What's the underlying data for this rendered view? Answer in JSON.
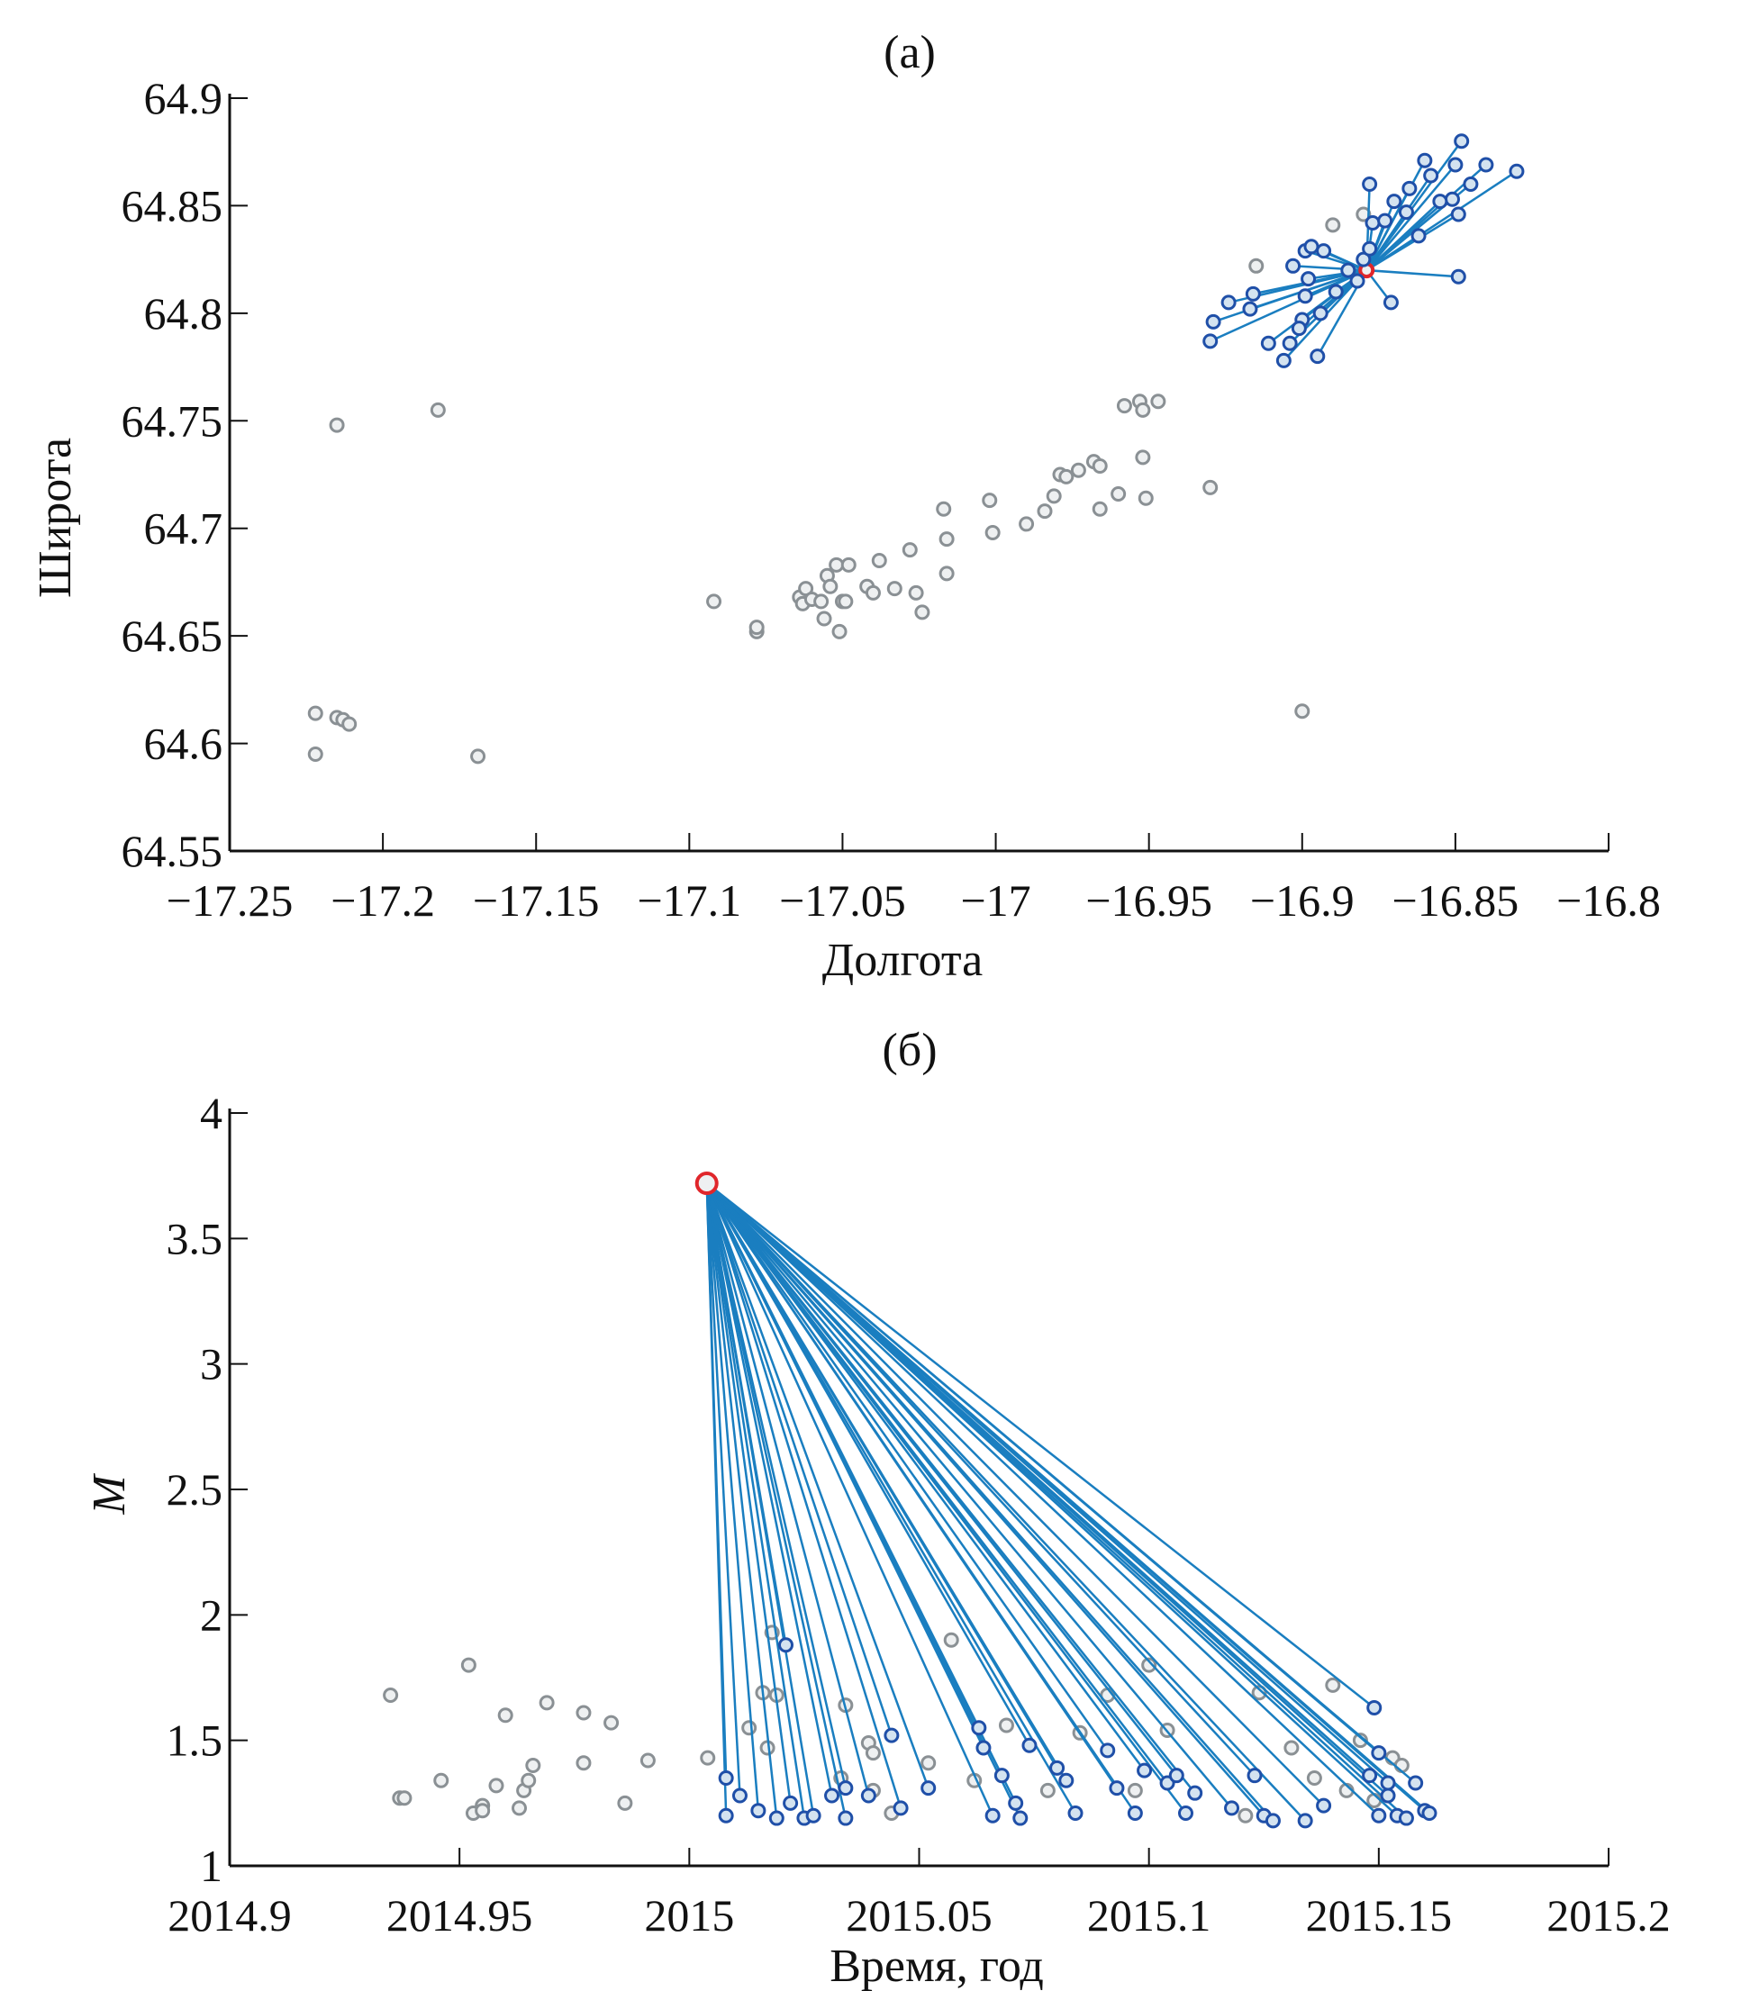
{
  "chart_data": [
    {
      "type": "scatter",
      "title": "(а)",
      "xlabel": "Долгота",
      "ylabel": "Широта",
      "xlim": [
        -17.25,
        -16.8
      ],
      "ylim": [
        64.55,
        64.9
      ],
      "xticks": [
        -17.25,
        -17.2,
        -17.15,
        -17.1,
        -17.05,
        -17,
        -16.95,
        -16.9,
        -16.85,
        -16.8
      ],
      "xtick_labels": [
        "−17.25",
        "−17.2",
        "−17.15",
        "−17.1",
        "−17.05",
        "−17",
        "−16.95",
        "−16.9",
        "−16.85",
        "−16.8"
      ],
      "yticks": [
        64.55,
        64.6,
        64.65,
        64.7,
        64.75,
        64.8,
        64.85,
        64.9
      ],
      "ytick_labels": [
        "64.55",
        "64.6",
        "64.65",
        "64.7",
        "64.75",
        "64.8",
        "64.85",
        "64.9"
      ],
      "mainshock": [
        -16.879,
        64.82
      ],
      "background_events": [
        [
          -17.215,
          64.748
        ],
        [
          -17.182,
          64.755
        ],
        [
          -17.222,
          64.614
        ],
        [
          -17.222,
          64.595
        ],
        [
          -17.215,
          64.612
        ],
        [
          -17.213,
          64.611
        ],
        [
          -17.211,
          64.609
        ],
        [
          -17.169,
          64.594
        ],
        [
          -17.092,
          64.666
        ],
        [
          -17.078,
          64.652
        ],
        [
          -17.078,
          64.654
        ],
        [
          -17.064,
          64.668
        ],
        [
          -17.063,
          64.665
        ],
        [
          -17.062,
          64.672
        ],
        [
          -17.06,
          64.667
        ],
        [
          -17.057,
          64.666
        ],
        [
          -17.056,
          64.658
        ],
        [
          -17.055,
          64.678
        ],
        [
          -17.054,
          64.673
        ],
        [
          -17.052,
          64.683
        ],
        [
          -17.051,
          64.652
        ],
        [
          -17.05,
          64.666
        ],
        [
          -17.049,
          64.666
        ],
        [
          -17.048,
          64.683
        ],
        [
          -17.042,
          64.673
        ],
        [
          -17.04,
          64.67
        ],
        [
          -17.038,
          64.685
        ],
        [
          -17.033,
          64.672
        ],
        [
          -17.028,
          64.69
        ],
        [
          -17.026,
          64.67
        ],
        [
          -17.024,
          64.661
        ],
        [
          -17.017,
          64.709
        ],
        [
          -17.016,
          64.695
        ],
        [
          -17.016,
          64.679
        ],
        [
          -17.002,
          64.713
        ],
        [
          -17.001,
          64.698
        ],
        [
          -16.99,
          64.702
        ],
        [
          -16.984,
          64.708
        ],
        [
          -16.981,
          64.715
        ],
        [
          -16.979,
          64.725
        ],
        [
          -16.977,
          64.724
        ],
        [
          -16.973,
          64.727
        ],
        [
          -16.968,
          64.731
        ],
        [
          -16.966,
          64.729
        ],
        [
          -16.966,
          64.709
        ],
        [
          -16.96,
          64.716
        ],
        [
          -16.958,
          64.757
        ],
        [
          -16.953,
          64.759
        ],
        [
          -16.952,
          64.755
        ],
        [
          -16.952,
          64.733
        ],
        [
          -16.951,
          64.714
        ],
        [
          -16.947,
          64.759
        ],
        [
          -16.93,
          64.719
        ],
        [
          -16.9,
          64.615
        ],
        [
          -16.915,
          64.822
        ],
        [
          -16.89,
          64.841
        ],
        [
          -16.88,
          64.846
        ]
      ],
      "aftershocks": [
        [
          -16.848,
          64.88
        ],
        [
          -16.86,
          64.871
        ],
        [
          -16.85,
          64.869
        ],
        [
          -16.84,
          64.869
        ],
        [
          -16.83,
          64.866
        ],
        [
          -16.845,
          64.86
        ],
        [
          -16.851,
          64.853
        ],
        [
          -16.855,
          64.852
        ],
        [
          -16.849,
          64.846
        ],
        [
          -16.87,
          64.852
        ],
        [
          -16.878,
          64.86
        ],
        [
          -16.877,
          64.842
        ],
        [
          -16.873,
          64.843
        ],
        [
          -16.862,
          64.836
        ],
        [
          -16.849,
          64.817
        ],
        [
          -16.871,
          64.805
        ],
        [
          -16.93,
          64.787
        ],
        [
          -16.929,
          64.796
        ],
        [
          -16.924,
          64.805
        ],
        [
          -16.917,
          64.802
        ],
        [
          -16.916,
          64.809
        ],
        [
          -16.903,
          64.822
        ],
        [
          -16.899,
          64.829
        ],
        [
          -16.897,
          64.831
        ],
        [
          -16.893,
          64.829
        ],
        [
          -16.898,
          64.816
        ],
        [
          -16.899,
          64.808
        ],
        [
          -16.9,
          64.797
        ],
        [
          -16.901,
          64.793
        ],
        [
          -16.904,
          64.786
        ],
        [
          -16.911,
          64.786
        ],
        [
          -16.906,
          64.778
        ],
        [
          -16.895,
          64.78
        ],
        [
          -16.894,
          64.8
        ],
        [
          -16.889,
          64.81
        ],
        [
          -16.885,
          64.82
        ],
        [
          -16.882,
          64.815
        ],
        [
          -16.88,
          64.825
        ],
        [
          -16.878,
          64.83
        ],
        [
          -16.865,
          64.858
        ],
        [
          -16.858,
          64.864
        ],
        [
          -16.866,
          64.847
        ]
      ]
    },
    {
      "type": "scatter",
      "title": "(б)",
      "xlabel": "Время, год",
      "ylabel": "M",
      "xlim": [
        2014.9,
        2015.2
      ],
      "ylim": [
        1,
        4
      ],
      "xticks": [
        2014.9,
        2014.95,
        2015,
        2015.05,
        2015.1,
        2015.15,
        2015.2
      ],
      "xtick_labels": [
        "2014.9",
        "2014.95",
        "2015",
        "2015.05",
        "2015.1",
        "2015.15",
        "2015.2"
      ],
      "yticks": [
        1,
        1.5,
        2,
        2.5,
        3,
        3.5,
        4
      ],
      "ytick_labels": [
        "1",
        "1.5",
        "2",
        "2.5",
        "3",
        "3.5",
        "4"
      ],
      "mainshock": [
        2015.0038,
        3.72
      ],
      "background_events": [
        [
          2014.935,
          1.68
        ],
        [
          2014.937,
          1.27
        ],
        [
          2014.938,
          1.27
        ],
        [
          2014.946,
          1.34
        ],
        [
          2014.952,
          1.8
        ],
        [
          2014.955,
          1.24
        ],
        [
          2014.953,
          1.21
        ],
        [
          2014.955,
          1.22
        ],
        [
          2014.96,
          1.6
        ],
        [
          2014.958,
          1.32
        ],
        [
          2014.963,
          1.23
        ],
        [
          2014.964,
          1.3
        ],
        [
          2014.965,
          1.34
        ],
        [
          2014.969,
          1.65
        ],
        [
          2014.966,
          1.4
        ],
        [
          2014.977,
          1.61
        ],
        [
          2014.977,
          1.41
        ],
        [
          2014.983,
          1.57
        ],
        [
          2014.986,
          1.25
        ],
        [
          2014.991,
          1.42
        ],
        [
          2015.004,
          1.43
        ],
        [
          2015.018,
          1.93
        ],
        [
          2015.016,
          1.69
        ],
        [
          2015.019,
          1.68
        ],
        [
          2015.013,
          1.55
        ],
        [
          2015.017,
          1.47
        ],
        [
          2015.034,
          1.64
        ],
        [
          2015.033,
          1.35
        ],
        [
          2015.039,
          1.49
        ],
        [
          2015.04,
          1.45
        ],
        [
          2015.04,
          1.3
        ],
        [
          2015.044,
          1.21
        ],
        [
          2015.052,
          1.41
        ],
        [
          2015.057,
          1.9
        ],
        [
          2015.062,
          1.34
        ],
        [
          2015.069,
          1.56
        ],
        [
          2015.078,
          1.3
        ],
        [
          2015.085,
          1.53
        ],
        [
          2015.091,
          1.68
        ],
        [
          2015.097,
          1.3
        ],
        [
          2015.1,
          1.8
        ],
        [
          2015.104,
          1.54
        ],
        [
          2015.121,
          1.2
        ],
        [
          2015.124,
          1.69
        ],
        [
          2015.131,
          1.47
        ],
        [
          2015.136,
          1.35
        ],
        [
          2015.14,
          1.72
        ],
        [
          2015.146,
          1.5
        ],
        [
          2015.153,
          1.43
        ],
        [
          2015.155,
          1.4
        ],
        [
          2015.143,
          1.3
        ],
        [
          2015.149,
          1.26
        ]
      ],
      "aftershocks": [
        [
          2015.008,
          1.35
        ],
        [
          2015.008,
          1.2
        ],
        [
          2015.011,
          1.28
        ],
        [
          2015.015,
          1.22
        ],
        [
          2015.019,
          1.19
        ],
        [
          2015.021,
          1.88
        ],
        [
          2015.022,
          1.25
        ],
        [
          2015.025,
          1.19
        ],
        [
          2015.027,
          1.2
        ],
        [
          2015.031,
          1.28
        ],
        [
          2015.034,
          1.31
        ],
        [
          2015.034,
          1.19
        ],
        [
          2015.039,
          1.28
        ],
        [
          2015.044,
          1.52
        ],
        [
          2015.046,
          1.23
        ],
        [
          2015.052,
          1.31
        ],
        [
          2015.063,
          1.55
        ],
        [
          2015.064,
          1.47
        ],
        [
          2015.066,
          1.2
        ],
        [
          2015.068,
          1.36
        ],
        [
          2015.071,
          1.25
        ],
        [
          2015.072,
          1.19
        ],
        [
          2015.074,
          1.48
        ],
        [
          2015.08,
          1.39
        ],
        [
          2015.082,
          1.34
        ],
        [
          2015.084,
          1.21
        ],
        [
          2015.091,
          1.46
        ],
        [
          2015.093,
          1.31
        ],
        [
          2015.097,
          1.21
        ],
        [
          2015.099,
          1.38
        ],
        [
          2015.104,
          1.33
        ],
        [
          2015.106,
          1.36
        ],
        [
          2015.108,
          1.21
        ],
        [
          2015.11,
          1.29
        ],
        [
          2015.118,
          1.23
        ],
        [
          2015.123,
          1.36
        ],
        [
          2015.125,
          1.2
        ],
        [
          2015.127,
          1.18
        ],
        [
          2015.134,
          1.18
        ],
        [
          2015.138,
          1.24
        ],
        [
          2015.149,
          1.63
        ],
        [
          2015.15,
          1.45
        ],
        [
          2015.152,
          1.33
        ],
        [
          2015.15,
          1.2
        ],
        [
          2015.152,
          1.28
        ],
        [
          2015.154,
          1.2
        ],
        [
          2015.156,
          1.19
        ],
        [
          2015.158,
          1.33
        ],
        [
          2015.16,
          1.22
        ],
        [
          2015.161,
          1.21
        ],
        [
          2015.148,
          1.36
        ]
      ]
    }
  ],
  "colors": {
    "background": "#8a9094",
    "aftershock_edge": "#1f4fa8",
    "aftershock_fill": "#d4e3f0",
    "link": "#1a7ec0",
    "mainshock": "#e0262b",
    "axis": "#111111"
  }
}
